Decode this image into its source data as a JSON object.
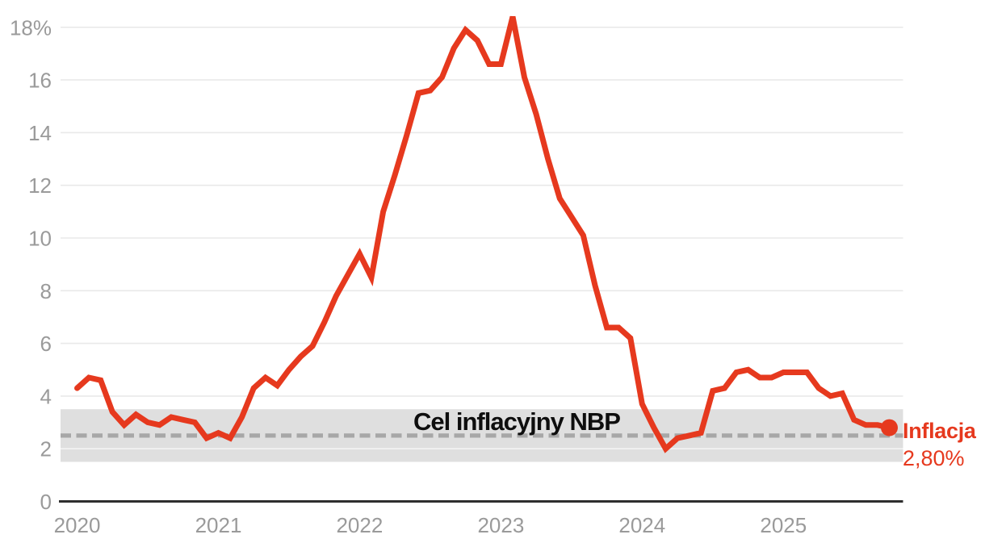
{
  "chart_data": {
    "type": "line",
    "title": "",
    "xlabel": "",
    "ylabel": "",
    "unit": "%",
    "frequency": "monthly",
    "start_month": "2020-01",
    "end_month": "2025-10",
    "x_tick_labels": [
      "2020",
      "2021",
      "2022",
      "2023",
      "2024",
      "2025"
    ],
    "y_ticks": [
      {
        "value": 18,
        "label": "18%"
      },
      {
        "value": 16,
        "label": "16"
      },
      {
        "value": 14,
        "label": "14"
      },
      {
        "value": 12,
        "label": "12"
      },
      {
        "value": 10,
        "label": "10"
      },
      {
        "value": 8,
        "label": "8"
      },
      {
        "value": 6,
        "label": "6"
      },
      {
        "value": 4,
        "label": "4"
      },
      {
        "value": 2,
        "label": "2"
      },
      {
        "value": 0,
        "label": "0"
      }
    ],
    "ylim": [
      0,
      18.5
    ],
    "grid": "horizontal",
    "legend_position": "end-of-line",
    "series": [
      {
        "name": "Inflacja",
        "color": "#e6391e",
        "values": [
          4.3,
          4.7,
          4.6,
          3.4,
          2.9,
          3.3,
          3.0,
          2.9,
          3.2,
          3.1,
          3.0,
          2.4,
          2.6,
          2.4,
          3.2,
          4.3,
          4.7,
          4.4,
          5.0,
          5.5,
          5.9,
          6.8,
          7.8,
          8.6,
          9.4,
          8.5,
          11.0,
          12.4,
          13.9,
          15.5,
          15.6,
          16.1,
          17.2,
          17.9,
          17.5,
          16.6,
          16.6,
          18.4,
          16.1,
          14.7,
          13.0,
          11.5,
          10.8,
          10.1,
          8.2,
          6.6,
          6.6,
          6.2,
          3.7,
          2.8,
          2.0,
          2.4,
          2.5,
          2.6,
          4.2,
          4.3,
          4.9,
          5.0,
          4.7,
          4.7,
          4.9,
          4.9,
          4.9,
          4.3,
          4.0,
          4.1,
          3.1,
          2.9,
          2.9,
          2.8
        ]
      }
    ],
    "target_band": {
      "label": "Cel inflacyjny NBP",
      "low": 1.5,
      "high": 3.5,
      "center": 2.5,
      "band_color": "#dfdfdf",
      "center_line_color": "#a7a7a7",
      "center_line_style": "dashed"
    },
    "end_marker": {
      "label": "Inflacja",
      "value": 2.8,
      "value_label": "2,80%",
      "color": "#e6391e"
    }
  },
  "colors": {
    "background": "#ffffff",
    "gridline": "#e9e9e9",
    "gridline_over_band": "#f4f4f4",
    "axis": "#2e2e2e",
    "tick_text": "#9a9a9a",
    "band_label_text": "#0e0e0e",
    "series_red": "#e6391e"
  }
}
